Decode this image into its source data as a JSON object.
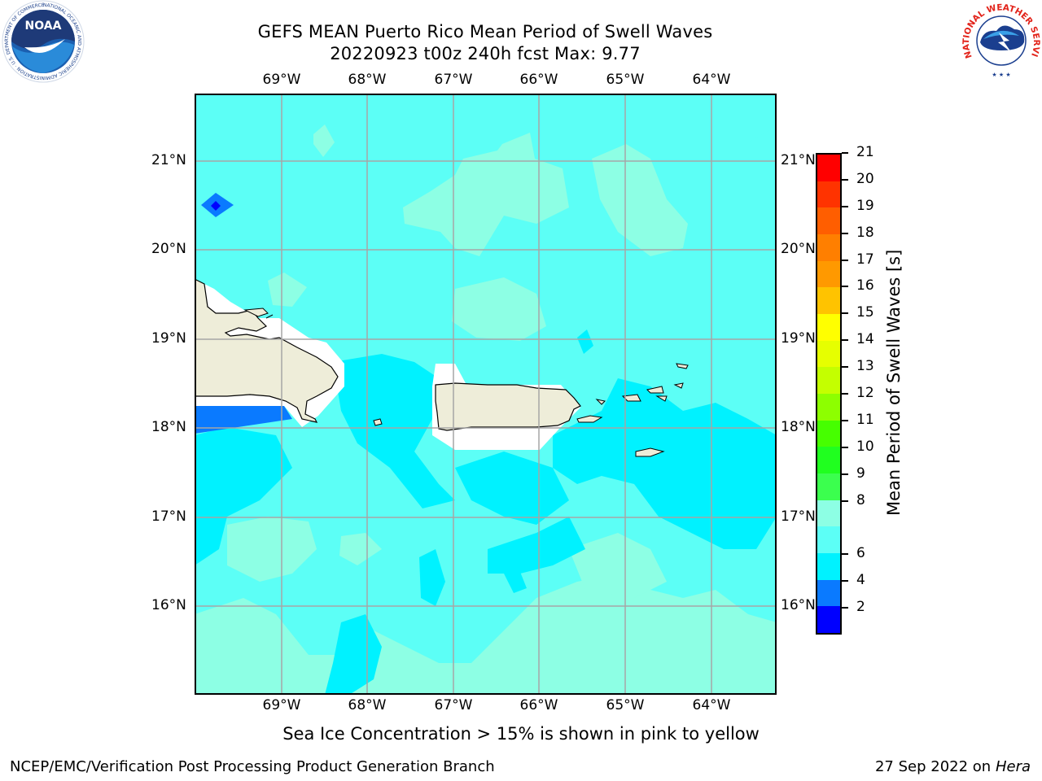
{
  "header": {
    "title_line1": "GEFS MEAN Puerto Rico Mean Period of Swell Waves",
    "title_line2": "20220923 t00z 240h fcst   Max: 9.77"
  },
  "map": {
    "lon_labels": [
      "69°W",
      "68°W",
      "67°W",
      "66°W",
      "65°W",
      "64°W"
    ],
    "lat_labels": [
      "21°N",
      "20°N",
      "19°N",
      "18°N",
      "17°N",
      "16°N"
    ],
    "colors": {
      "ocean_8_9": "#5cfff6",
      "ocean_6_8": "#00f2ff",
      "ocean_9_10": "#8dffe4",
      "ocean_4_6": "#0a7aff",
      "ocean_2_4": "#0000ff",
      "land": "#eeedd9",
      "mask": "#ffffff",
      "grid": "#a6a6a6"
    }
  },
  "colorbar": {
    "title": "Mean Period of Swell Waves [s]",
    "ticks": [
      "21",
      "20",
      "19",
      "18",
      "17",
      "16",
      "15",
      "14",
      "13",
      "12",
      "11",
      "10",
      "9",
      "8",
      "6",
      "4",
      "2"
    ],
    "colors_top_to_bottom": [
      "#ff0000",
      "#ff3300",
      "#ff5e00",
      "#ff7f00",
      "#ff9900",
      "#ffc300",
      "#ffff00",
      "#e6ff00",
      "#c4ff00",
      "#8dff00",
      "#46ff00",
      "#20ff1f",
      "#3bff4e",
      "#8dffe4",
      "#5cfff6",
      "#00f2ff",
      "#0a7aff",
      "#0000ff"
    ]
  },
  "note": "Sea Ice Concentration > 15% is shown in pink to yellow",
  "footer": {
    "left": "NCEP/EMC/Verification Post Processing Product Generation Branch",
    "right_date": "27 Sep 2022 on",
    "right_host": "Hera"
  },
  "logos": {
    "noaa_text": "NOAA",
    "noaa_ring": "NATIONAL OCEANIC AND ATMOSPHERIC ADMINISTRATION · U.S. DEPARTMENT OF COMMERCE",
    "nws_ring": "NATIONAL WEATHER SERVICE"
  }
}
